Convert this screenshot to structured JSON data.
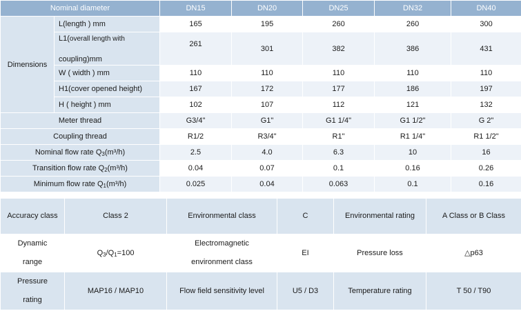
{
  "spec_table": {
    "header": {
      "label": "Nominal diameter",
      "sizes": [
        "DN15",
        "DN20",
        "DN25",
        "DN32",
        "DN40"
      ]
    },
    "dimensions_label": "Dimensions",
    "dimension_rows": [
      {
        "label": "L(length ) mm",
        "values": [
          "165",
          "195",
          "260",
          "260",
          "300"
        ]
      },
      {
        "label_main": "L1(",
        "label_small": "overall length with",
        "label_tail": "coupling)mm",
        "values": [
          "261",
          "301",
          "382",
          "386",
          "431"
        ]
      },
      {
        "label": "W ( width ) mm",
        "values": [
          "110",
          "110",
          "110",
          "110",
          "110"
        ]
      },
      {
        "label": "H1(cover opened height)",
        "values": [
          "167",
          "172",
          "177",
          "186",
          "197"
        ]
      },
      {
        "label": "H ( height ) mm",
        "values": [
          "102",
          "107",
          "112",
          "121",
          "132"
        ]
      }
    ],
    "rows": [
      {
        "label": "Meter thread",
        "values": [
          "G3/4\"",
          "G1\"",
          "G1 1/4\"",
          "G1 1/2\"",
          "G 2\""
        ]
      },
      {
        "label": "Coupling thread",
        "values": [
          "R1/2",
          "R3/4\"",
          "R1\"",
          "R1 1/4\"",
          "R1 1/2\""
        ]
      },
      {
        "label_pre": "Nominal flow rate Q",
        "label_sub": "3",
        "label_post": "(m³/h)",
        "values": [
          "2.5",
          "4.0",
          "6.3",
          "10",
          "16"
        ]
      },
      {
        "label_pre": "Transition flow rate Q",
        "label_sub": "2",
        "label_post": "(m³/h)",
        "values": [
          "0.04",
          "0.07",
          "0.1",
          "0.16",
          "0.26"
        ]
      },
      {
        "label_pre": "Minimum flow rate Q",
        "label_sub": "1",
        "label_post": "(m³/h)",
        "values": [
          "0.025",
          "0.04",
          "0.063",
          "0.1",
          "0.16"
        ]
      }
    ]
  },
  "props_table": {
    "rows": [
      {
        "c1": "Accuracy class",
        "c2": "Class 2",
        "c3": "Environmental class",
        "c4": "C",
        "c5": "Environmental rating",
        "c6": "A Class or B Class"
      },
      {
        "c1_a": "Dynamic",
        "c1_b": "range",
        "c2_q": "Q",
        "c2_s1": "3",
        "c2_mid": "/Q",
        "c2_s2": "1",
        "c2_end": "=100",
        "c3_a": "Electromagnetic",
        "c3_b": "environment class",
        "c4": "EI",
        "c5": "Pressure loss",
        "c6": "△p63"
      },
      {
        "c1_a": "Pressure",
        "c1_b": "rating",
        "c2": "MAP16 / MAP10",
        "c3": "Flow field sensitivity level",
        "c4": "U5 / D3",
        "c5": "Temperature rating",
        "c6": "T 50 / T90"
      }
    ]
  }
}
